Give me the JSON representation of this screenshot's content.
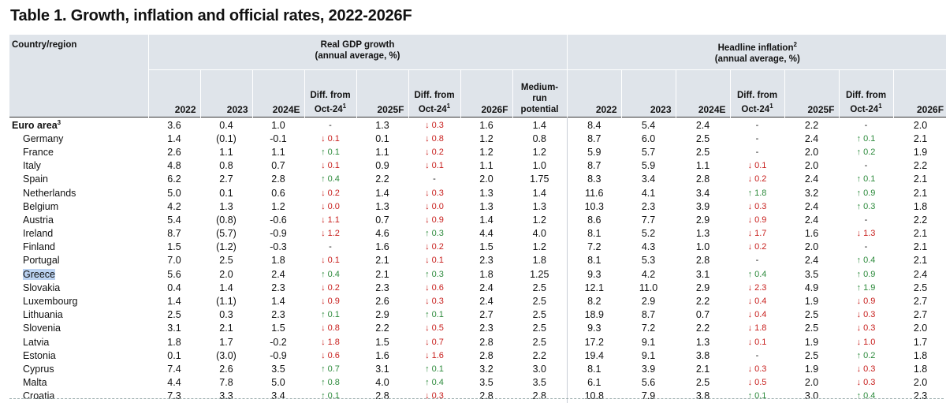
{
  "title": "Table 1. Growth, inflation and official rates, 2022-2026F",
  "header": {
    "country_label": "Country/region",
    "gdp_group": "Real GDP growth",
    "gdp_sub": "(annual average, %)",
    "infl_group": "Headline inflation",
    "infl_sup": "2",
    "infl_sub": "(annual average, %)",
    "cols": {
      "y2022": "2022",
      "y2023": "2023",
      "y2024": "2024E",
      "diff1_a": "Diff. from",
      "diff1_b": "Oct-24",
      "diff_sup": "1",
      "y2025": "2025F",
      "diff2_a": "Diff. from",
      "diff2_b": "Oct-24",
      "y2026": "2026F",
      "med_a": "Medium-",
      "med_b": "run",
      "med_c": "potential",
      "i2022": "2022",
      "i2023": "2023",
      "i2024": "2024E",
      "idiff1_a": "Diff. from",
      "idiff1_b": "Oct-24",
      "i2025": "2025F",
      "idiff2_a": "Diff. from",
      "idiff2_b": "Oct-24",
      "i2026": "2026F"
    }
  },
  "colors": {
    "up": "#2e8b3d",
    "down": "#c8201e",
    "header_bg": "#dfe4ea",
    "highlight": "#bcd3f2"
  },
  "rows": [
    {
      "name": "Euro area",
      "sup": "3",
      "agg": true,
      "g22": "3.6",
      "g23": "0.4",
      "g24": "1.0",
      "d1": "-",
      "g25": "1.3",
      "d2": "↓ 0.3",
      "g26": "1.6",
      "mrp": "1.4",
      "i22": "8.4",
      "i23": "5.4",
      "i24": "2.4",
      "di1": "-",
      "i25": "2.2",
      "di2": "-",
      "i26": "2.0"
    },
    {
      "name": "Germany",
      "g22": "1.4",
      "g23": "(0.1)",
      "g24": "-0.1",
      "d1": "↓ 0.1",
      "g25": "0.1",
      "d2": "↓ 0.8",
      "g26": "1.2",
      "mrp": "0.8",
      "i22": "8.7",
      "i23": "6.0",
      "i24": "2.5",
      "di1": "-",
      "i25": "2.4",
      "di2": "↑ 0.1",
      "i26": "2.1"
    },
    {
      "name": "France",
      "g22": "2.6",
      "g23": "1.1",
      "g24": "1.1",
      "d1": "↑ 0.1",
      "g25": "1.1",
      "d2": "↓ 0.2",
      "g26": "1.2",
      "mrp": "1.2",
      "i22": "5.9",
      "i23": "5.7",
      "i24": "2.5",
      "di1": "-",
      "i25": "2.0",
      "di2": "↑ 0.2",
      "i26": "1.9"
    },
    {
      "name": "Italy",
      "g22": "4.8",
      "g23": "0.8",
      "g24": "0.7",
      "d1": "↓ 0.1",
      "g25": "0.9",
      "d2": "↓ 0.1",
      "g26": "1.1",
      "mrp": "1.0",
      "i22": "8.7",
      "i23": "5.9",
      "i24": "1.1",
      "di1": "↓ 0.1",
      "i25": "2.0",
      "di2": "-",
      "i26": "2.2"
    },
    {
      "name": "Spain",
      "g22": "6.2",
      "g23": "2.7",
      "g24": "2.8",
      "d1": "↑ 0.4",
      "g25": "2.2",
      "d2": "-",
      "g26": "2.0",
      "mrp": "1.75",
      "i22": "8.3",
      "i23": "3.4",
      "i24": "2.8",
      "di1": "↓ 0.2",
      "i25": "2.4",
      "di2": "↑ 0.1",
      "i26": "2.1"
    },
    {
      "name": "Netherlands",
      "g22": "5.0",
      "g23": "0.1",
      "g24": "0.6",
      "d1": "↓ 0.2",
      "g25": "1.4",
      "d2": "↓ 0.3",
      "g26": "1.3",
      "mrp": "1.4",
      "i22": "11.6",
      "i23": "4.1",
      "i24": "3.4",
      "di1": "↑ 1.8",
      "i25": "3.2",
      "di2": "↑ 0.9",
      "i26": "2.1"
    },
    {
      "name": "Belgium",
      "g22": "4.2",
      "g23": "1.3",
      "g24": "1.2",
      "d1": "↓ 0.0",
      "g25": "1.3",
      "d2": "↓ 0.0",
      "g26": "1.3",
      "mrp": "1.3",
      "i22": "10.3",
      "i23": "2.3",
      "i24": "3.9",
      "di1": "↓ 0.3",
      "i25": "2.4",
      "di2": "↑ 0.3",
      "i26": "1.8"
    },
    {
      "name": "Austria",
      "g22": "5.4",
      "g23": "(0.8)",
      "g24": "-0.6",
      "d1": "↓ 1.1",
      "g25": "0.7",
      "d2": "↓ 0.9",
      "g26": "1.4",
      "mrp": "1.2",
      "i22": "8.6",
      "i23": "7.7",
      "i24": "2.9",
      "di1": "↓ 0.9",
      "i25": "2.4",
      "di2": "-",
      "i26": "2.2"
    },
    {
      "name": "Ireland",
      "g22": "8.7",
      "g23": "(5.7)",
      "g24": "-0.9",
      "d1": "↓ 1.2",
      "g25": "4.6",
      "d2": "↑ 0.3",
      "g26": "4.4",
      "mrp": "4.0",
      "i22": "8.1",
      "i23": "5.2",
      "i24": "1.3",
      "di1": "↓ 1.7",
      "i25": "1.6",
      "di2": "↓ 1.3",
      "i26": "2.1"
    },
    {
      "name": "Finland",
      "g22": "1.5",
      "g23": "(1.2)",
      "g24": "-0.3",
      "d1": "-",
      "g25": "1.6",
      "d2": "↓ 0.2",
      "g26": "1.5",
      "mrp": "1.2",
      "i22": "7.2",
      "i23": "4.3",
      "i24": "1.0",
      "di1": "↓ 0.2",
      "i25": "2.0",
      "di2": "-",
      "i26": "2.1"
    },
    {
      "name": "Portugal",
      "g22": "7.0",
      "g23": "2.5",
      "g24": "1.8",
      "d1": "↓ 0.1",
      "g25": "2.1",
      "d2": "↓ 0.1",
      "g26": "2.3",
      "mrp": "1.8",
      "i22": "8.1",
      "i23": "5.3",
      "i24": "2.8",
      "di1": "-",
      "i25": "2.4",
      "di2": "↑ 0.4",
      "i26": "2.1"
    },
    {
      "name": "Greece",
      "hl": true,
      "g22": "5.6",
      "g23": "2.0",
      "g24": "2.4",
      "d1": "↑ 0.4",
      "g25": "2.1",
      "d2": "↑ 0.3",
      "g26": "1.8",
      "mrp": "1.25",
      "i22": "9.3",
      "i23": "4.2",
      "i24": "3.1",
      "di1": "↑ 0.4",
      "i25": "3.5",
      "di2": "↑ 0.9",
      "i26": "2.4"
    },
    {
      "name": "Slovakia",
      "g22": "0.4",
      "g23": "1.4",
      "g24": "2.3",
      "d1": "↓ 0.2",
      "g25": "2.3",
      "d2": "↓ 0.6",
      "g26": "2.4",
      "mrp": "2.5",
      "i22": "12.1",
      "i23": "11.0",
      "i24": "2.9",
      "di1": "↓ 2.3",
      "i25": "4.9",
      "di2": "↑ 1.9",
      "i26": "2.5"
    },
    {
      "name": "Luxembourg",
      "g22": "1.4",
      "g23": "(1.1)",
      "g24": "1.4",
      "d1": "↓ 0.9",
      "g25": "2.6",
      "d2": "↓ 0.3",
      "g26": "2.4",
      "mrp": "2.5",
      "i22": "8.2",
      "i23": "2.9",
      "i24": "2.2",
      "di1": "↓ 0.4",
      "i25": "1.9",
      "di2": "↓ 0.9",
      "i26": "2.7"
    },
    {
      "name": "Lithuania",
      "g22": "2.5",
      "g23": "0.3",
      "g24": "2.3",
      "d1": "↑ 0.1",
      "g25": "2.9",
      "d2": "↑ 0.1",
      "g26": "2.7",
      "mrp": "2.5",
      "i22": "18.9",
      "i23": "8.7",
      "i24": "0.7",
      "di1": "↓ 0.4",
      "i25": "2.5",
      "di2": "↓ 0.3",
      "i26": "2.7"
    },
    {
      "name": "Slovenia",
      "g22": "3.1",
      "g23": "2.1",
      "g24": "1.5",
      "d1": "↓ 0.8",
      "g25": "2.2",
      "d2": "↓ 0.5",
      "g26": "2.3",
      "mrp": "2.5",
      "i22": "9.3",
      "i23": "7.2",
      "i24": "2.2",
      "di1": "↓ 1.8",
      "i25": "2.5",
      "di2": "↓ 0.3",
      "i26": "2.0"
    },
    {
      "name": "Latvia",
      "g22": "1.8",
      "g23": "1.7",
      "g24": "-0.2",
      "d1": "↓ 1.8",
      "g25": "1.5",
      "d2": "↓ 0.7",
      "g26": "2.8",
      "mrp": "2.5",
      "i22": "17.2",
      "i23": "9.1",
      "i24": "1.3",
      "di1": "↓ 0.1",
      "i25": "1.9",
      "di2": "↓ 1.0",
      "i26": "1.7"
    },
    {
      "name": "Estonia",
      "g22": "0.1",
      "g23": "(3.0)",
      "g24": "-0.9",
      "d1": "↓ 0.6",
      "g25": "1.6",
      "d2": "↓ 1.6",
      "g26": "2.8",
      "mrp": "2.2",
      "i22": "19.4",
      "i23": "9.1",
      "i24": "3.8",
      "di1": "-",
      "i25": "2.5",
      "di2": "↑ 0.2",
      "i26": "1.8"
    },
    {
      "name": "Cyprus",
      "g22": "7.4",
      "g23": "2.6",
      "g24": "3.5",
      "d1": "↑ 0.7",
      "g25": "3.1",
      "d2": "↑ 0.1",
      "g26": "3.2",
      "mrp": "3.0",
      "i22": "8.1",
      "i23": "3.9",
      "i24": "2.1",
      "di1": "↓ 0.3",
      "i25": "1.9",
      "di2": "↓ 0.3",
      "i26": "1.8"
    },
    {
      "name": "Malta",
      "g22": "4.4",
      "g23": "7.8",
      "g24": "5.0",
      "d1": "↑ 0.8",
      "g25": "4.0",
      "d2": "↑ 0.4",
      "g26": "3.5",
      "mrp": "3.5",
      "i22": "6.1",
      "i23": "5.6",
      "i24": "2.5",
      "di1": "↓ 0.5",
      "i25": "2.0",
      "di2": "↓ 0.3",
      "i26": "2.0"
    },
    {
      "name": "Croatia",
      "g22": "7.3",
      "g23": "3.3",
      "g24": "3.4",
      "d1": "↑ 0.1",
      "g25": "2.8",
      "d2": "↓ 0.3",
      "g26": "2.8",
      "mrp": "2.8",
      "i22": "10.8",
      "i23": "7.9",
      "i24": "3.8",
      "di1": "↑ 0.1",
      "i25": "3.0",
      "di2": "↑ 0.4",
      "i26": "2.3"
    }
  ]
}
